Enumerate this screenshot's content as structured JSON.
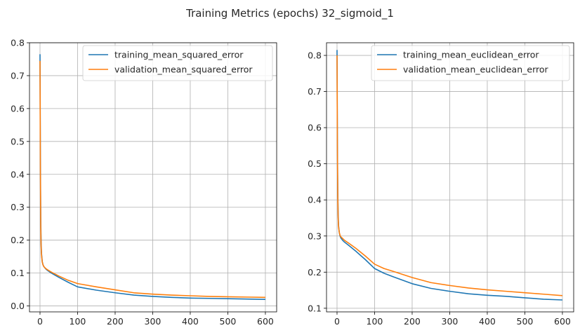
{
  "figure": {
    "suptitle": "Training Metrics (epochs) 32_sigmoid_1"
  },
  "colors": {
    "training": "#1f77b4",
    "validation": "#ff7f0e",
    "grid": "#b0b0b0",
    "axes": "#000000"
  },
  "chart_data": [
    {
      "type": "line",
      "title": "",
      "xlabel": "",
      "ylabel": "",
      "xlim": [
        -28,
        630
      ],
      "ylim": [
        -0.018,
        0.8
      ],
      "xticks": [
        0,
        100,
        200,
        300,
        400,
        500,
        600
      ],
      "xtick_labels": [
        "0",
        "100",
        "200",
        "300",
        "400",
        "500",
        "600"
      ],
      "yticks": [
        0.0,
        0.1,
        0.2,
        0.3,
        0.4,
        0.5,
        0.6,
        0.7,
        0.8
      ],
      "ytick_labels": [
        "0.0",
        "0.1",
        "0.2",
        "0.3",
        "0.4",
        "0.5",
        "0.6",
        "0.7",
        "0.8"
      ],
      "grid": true,
      "legend_position": "top-right",
      "series": [
        {
          "name": "training_mean_squared_error",
          "color": "#1f77b4",
          "x": [
            0,
            1,
            2,
            3,
            4,
            6,
            8,
            10,
            15,
            20,
            30,
            50,
            75,
            100,
            150,
            200,
            250,
            300,
            350,
            400,
            450,
            500,
            550,
            600
          ],
          "y": [
            0.765,
            0.45,
            0.26,
            0.19,
            0.16,
            0.135,
            0.125,
            0.12,
            0.113,
            0.108,
            0.1,
            0.087,
            0.072,
            0.058,
            0.048,
            0.04,
            0.033,
            0.029,
            0.026,
            0.024,
            0.023,
            0.022,
            0.021,
            0.02
          ]
        },
        {
          "name": "validation_mean_squared_error",
          "color": "#ff7f0e",
          "x": [
            0,
            1,
            2,
            3,
            4,
            6,
            8,
            10,
            15,
            20,
            30,
            50,
            75,
            100,
            150,
            200,
            250,
            300,
            350,
            400,
            450,
            500,
            550,
            600
          ],
          "y": [
            0.745,
            0.42,
            0.24,
            0.18,
            0.155,
            0.133,
            0.125,
            0.12,
            0.114,
            0.11,
            0.103,
            0.091,
            0.078,
            0.068,
            0.058,
            0.049,
            0.04,
            0.036,
            0.033,
            0.031,
            0.029,
            0.028,
            0.027,
            0.026
          ]
        }
      ]
    },
    {
      "type": "line",
      "title": "",
      "xlabel": "",
      "ylabel": "",
      "xlim": [
        -28,
        630
      ],
      "ylim": [
        0.09,
        0.835
      ],
      "xticks": [
        0,
        100,
        200,
        300,
        400,
        500,
        600
      ],
      "xtick_labels": [
        "0",
        "100",
        "200",
        "300",
        "400",
        "500",
        "600"
      ],
      "yticks": [
        0.1,
        0.2,
        0.3,
        0.4,
        0.5,
        0.6,
        0.7,
        0.8
      ],
      "ytick_labels": [
        "0.1",
        "0.2",
        "0.3",
        "0.4",
        "0.5",
        "0.6",
        "0.7",
        "0.8"
      ],
      "grid": true,
      "legend_position": "top-right",
      "series": [
        {
          "name": "training_mean_euclidean_error",
          "color": "#1f77b4",
          "x": [
            0,
            1,
            2,
            3,
            4,
            6,
            8,
            10,
            15,
            20,
            30,
            50,
            75,
            100,
            125,
            150,
            200,
            250,
            300,
            350,
            400,
            450,
            500,
            550,
            600
          ],
          "y": [
            0.815,
            0.55,
            0.42,
            0.36,
            0.33,
            0.31,
            0.3,
            0.295,
            0.288,
            0.283,
            0.275,
            0.258,
            0.235,
            0.21,
            0.197,
            0.187,
            0.168,
            0.155,
            0.147,
            0.14,
            0.136,
            0.133,
            0.129,
            0.125,
            0.123
          ]
        },
        {
          "name": "validation_mean_euclidean_error",
          "color": "#ff7f0e",
          "x": [
            0,
            1,
            2,
            3,
            4,
            6,
            8,
            10,
            15,
            20,
            30,
            50,
            75,
            100,
            125,
            150,
            200,
            250,
            300,
            350,
            400,
            450,
            500,
            550,
            600
          ],
          "y": [
            0.8,
            0.54,
            0.41,
            0.35,
            0.325,
            0.31,
            0.302,
            0.298,
            0.293,
            0.288,
            0.281,
            0.266,
            0.245,
            0.222,
            0.21,
            0.202,
            0.185,
            0.171,
            0.163,
            0.156,
            0.151,
            0.147,
            0.143,
            0.139,
            0.135
          ]
        }
      ]
    }
  ]
}
